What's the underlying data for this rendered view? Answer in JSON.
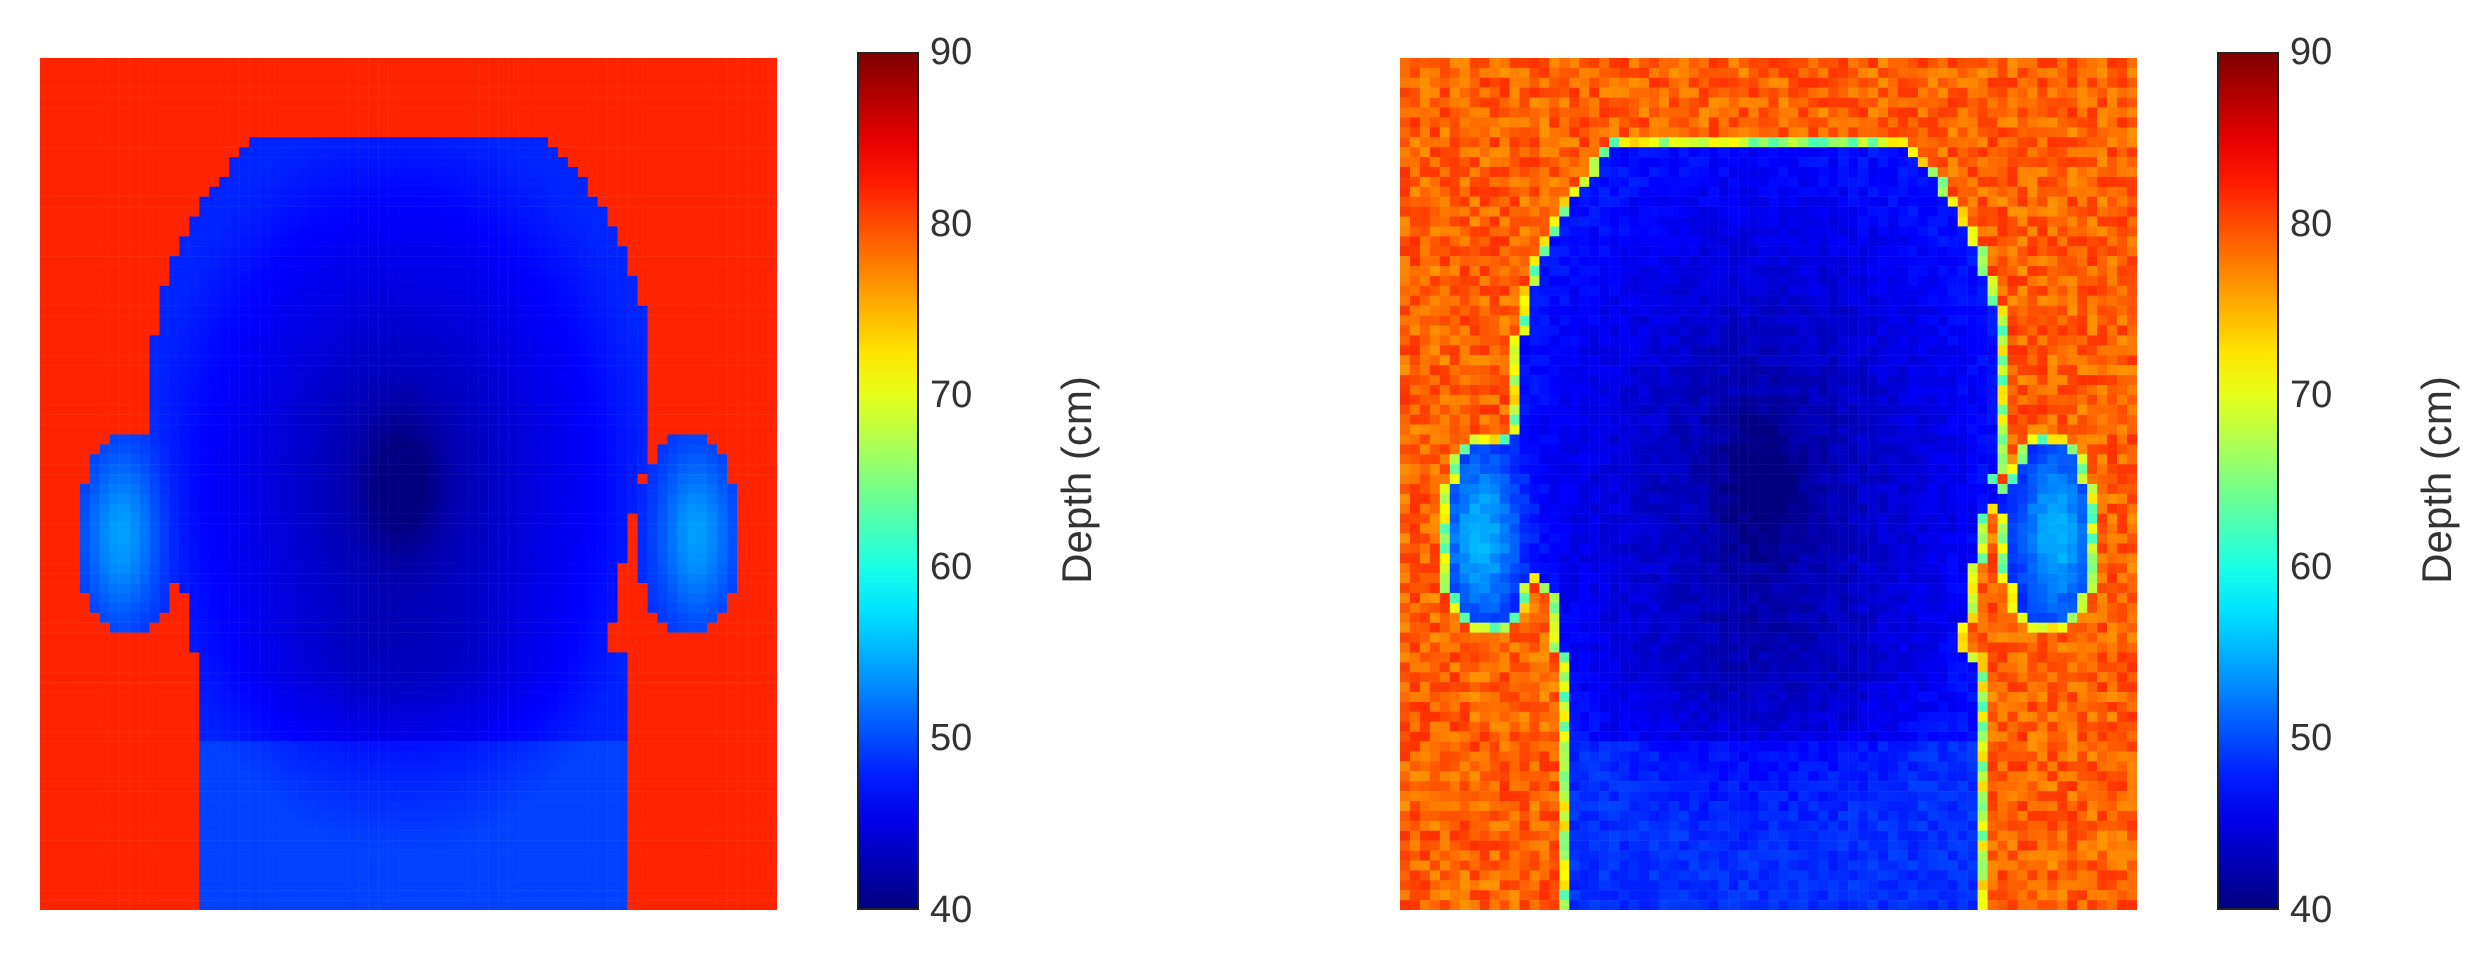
{
  "chart_data": [
    {
      "type": "heatmap",
      "title": "",
      "xlabel": "",
      "ylabel": "",
      "description": "",
      "background_value_cm": 82,
      "face_min_value_cm": 41,
      "face_typical_value_cm": 48,
      "ear_value_cm": 54,
      "noise": false,
      "colorbar": {
        "label": "Depth (cm)",
        "range": [
          40,
          90
        ],
        "ticks": [
          40,
          50,
          60,
          70,
          80,
          90
        ],
        "colormap": "jet"
      }
    },
    {
      "type": "heatmap",
      "title": "",
      "xlabel": "",
      "ylabel": "",
      "description": "",
      "background_value_cm": 79,
      "face_min_value_cm": 41,
      "face_typical_value_cm": 47,
      "ear_value_cm": 55,
      "noise": true,
      "colorbar": {
        "label": "Depth (cm)",
        "range": [
          40,
          90
        ],
        "ticks": [
          40,
          50,
          60,
          70,
          80,
          90
        ],
        "colormap": "jet"
      }
    }
  ]
}
